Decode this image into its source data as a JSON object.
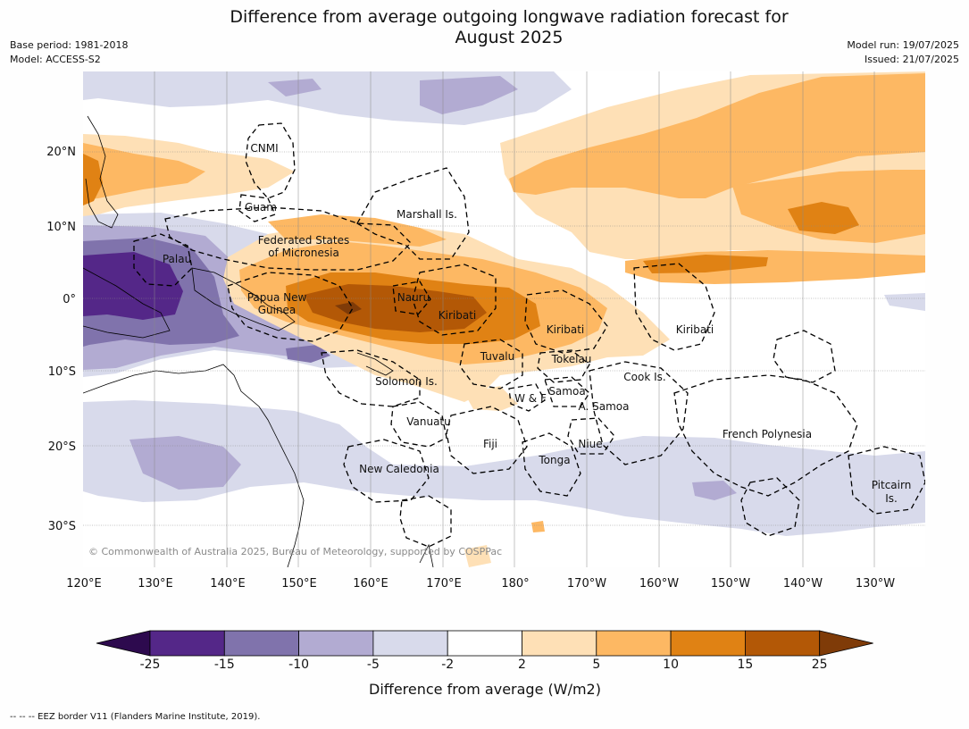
{
  "header": {
    "title_line1": "Difference from average outgoing longwave radiation forecast for",
    "title_line2": "August 2025",
    "base_period": "Base period: 1981-2018",
    "model": "Model: ACCESS-S2",
    "model_run": "Model run: 19/07/2025",
    "issued": "Issued: 21/07/2025"
  },
  "map": {
    "lon_ticks": [
      "120°E",
      "130°E",
      "140°E",
      "150°E",
      "160°E",
      "170°E",
      "180°",
      "170°W",
      "160°W",
      "150°W",
      "140°W",
      "130°W"
    ],
    "lat_ticks": [
      "20°N",
      "10°N",
      "0°",
      "10°S",
      "20°S",
      "30°S"
    ],
    "credit": "© Commonwealth of Australia 2025, Bureau of Meteorology, supported by COSPPac",
    "regions": [
      "CNMI",
      "Guam",
      "Marshall Is.",
      "Federated States",
      "of Micronesia",
      "Palau",
      "Papua New",
      "Guinea",
      "Nauru",
      "Kiribati",
      "Kiribati",
      "Kiribati",
      "Tuvalu",
      "Tokelau",
      "Solomon Is.",
      "Cook Is.",
      "Samoa",
      "W & F",
      "A. Samoa",
      "Vanuatu",
      "Fiji",
      "Niue",
      "Tonga",
      "French Polynesia",
      "New Caledonia",
      "Pitcairn",
      "Is."
    ]
  },
  "colorbar": {
    "labels": [
      "-25",
      "-15",
      "-10",
      "-5",
      "-2",
      "2",
      "5",
      "10",
      "15",
      "25"
    ],
    "colors": [
      "#2d0a4e",
      "#542788",
      "#8073ac",
      "#b2abd2",
      "#d8daeb",
      "#ffffff",
      "#fee0b6",
      "#fdb863",
      "#e08214",
      "#b35806",
      "#7f3b08"
    ],
    "title": "Difference from average (W/m2)"
  },
  "footer": {
    "text": "--  --  -- EEZ border V11 (Flanders Marine Institute, 2019)."
  }
}
